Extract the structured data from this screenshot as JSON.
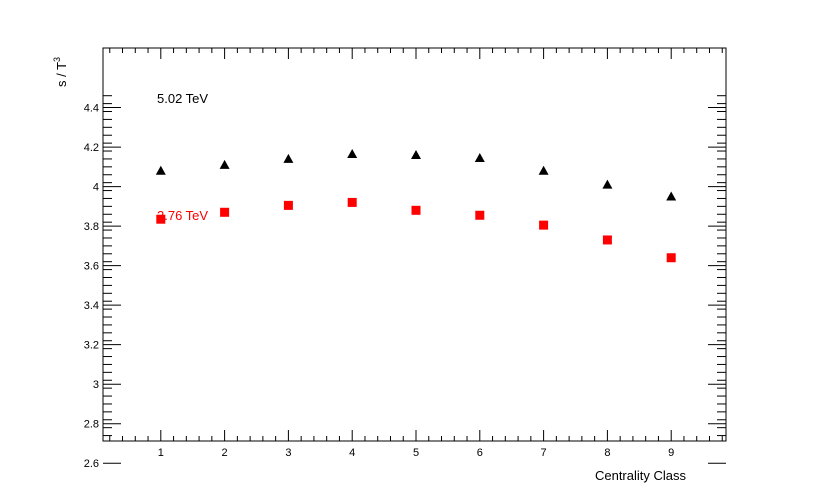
{
  "chart_data": {
    "type": "scatter",
    "xlabel": "Centrality Class",
    "ylabel_main": "s / T",
    "ylabel_sup": "3",
    "xlim": [
      0,
      9.9
    ],
    "ylim": [
      2.52,
      4.5
    ],
    "x_ticks": [
      1,
      2,
      3,
      4,
      5,
      6,
      7,
      8,
      9
    ],
    "x_tick_labels": [
      "1",
      "2",
      "3",
      "4",
      "5",
      "6",
      "7",
      "8",
      "9"
    ],
    "y_ticks": [
      2.6,
      2.8,
      3.0,
      3.2,
      3.4,
      3.6,
      3.8,
      4.0,
      4.2,
      4.4
    ],
    "y_tick_labels": [
      "2.6",
      "2.8",
      "3",
      "3.2",
      "3.4",
      "3.6",
      "3.8",
      "4",
      "4.2",
      "4.4"
    ],
    "grid": false,
    "series": [
      {
        "name": "5.02 TeV",
        "marker": "triangle",
        "color": "#000000",
        "x": [
          1,
          2,
          3,
          4,
          5,
          6,
          7,
          8,
          9
        ],
        "y": [
          4.08,
          4.11,
          4.14,
          4.165,
          4.16,
          4.145,
          4.08,
          4.01,
          3.95
        ]
      },
      {
        "name": "2.76 TeV",
        "marker": "square",
        "color": "#ff0000",
        "x": [
          1,
          2,
          3,
          4,
          5,
          6,
          7,
          8,
          9
        ],
        "y": [
          3.835,
          3.87,
          3.905,
          3.92,
          3.88,
          3.855,
          3.805,
          3.73,
          3.64
        ]
      }
    ]
  }
}
